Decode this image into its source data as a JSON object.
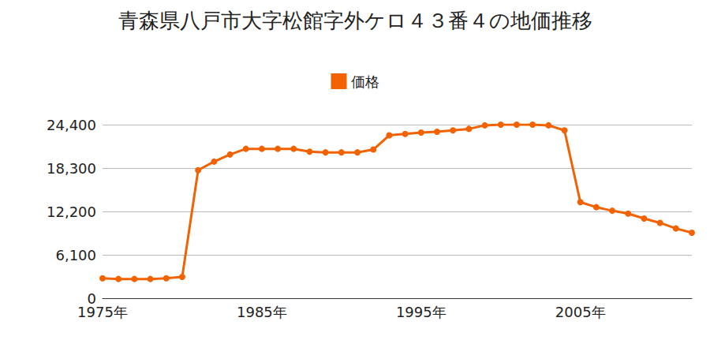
{
  "chart_data": {
    "type": "line",
    "title": "青森県八戸市大字松館字外ケロ４３番４の地価推移",
    "categories": [
      "1975年",
      null,
      null,
      null,
      null,
      null,
      null,
      null,
      null,
      null,
      "1985年",
      null,
      null,
      null,
      null,
      null,
      null,
      null,
      null,
      null,
      "1995年",
      null,
      null,
      null,
      null,
      null,
      null,
      null,
      null,
      null,
      "2005年",
      null,
      null,
      null,
      null,
      null,
      null,
      null
    ],
    "series": [
      {
        "name": "価格",
        "color": "#f26200",
        "marker": "circle",
        "values": [
          2800,
          2700,
          2700,
          2700,
          2800,
          3000,
          18000,
          19200,
          20200,
          21000,
          21000,
          21000,
          21000,
          20600,
          20500,
          20500,
          20500,
          20900,
          22900,
          23100,
          23300,
          23400,
          23600,
          23800,
          24300,
          24400,
          24400,
          24400,
          24300,
          23600,
          13500,
          12800,
          12300,
          11900,
          11200,
          10600,
          9800,
          9200
        ]
      }
    ],
    "ylim": [
      0,
      24400
    ],
    "yticks": [
      0,
      {
        "value": 6100,
        "label": "6,100"
      },
      {
        "value": 12200,
        "label": "12,200"
      },
      {
        "value": 18300,
        "label": "18,300"
      },
      {
        "value": 24400,
        "label": "24,400"
      }
    ],
    "grid": true,
    "legend": "top"
  }
}
